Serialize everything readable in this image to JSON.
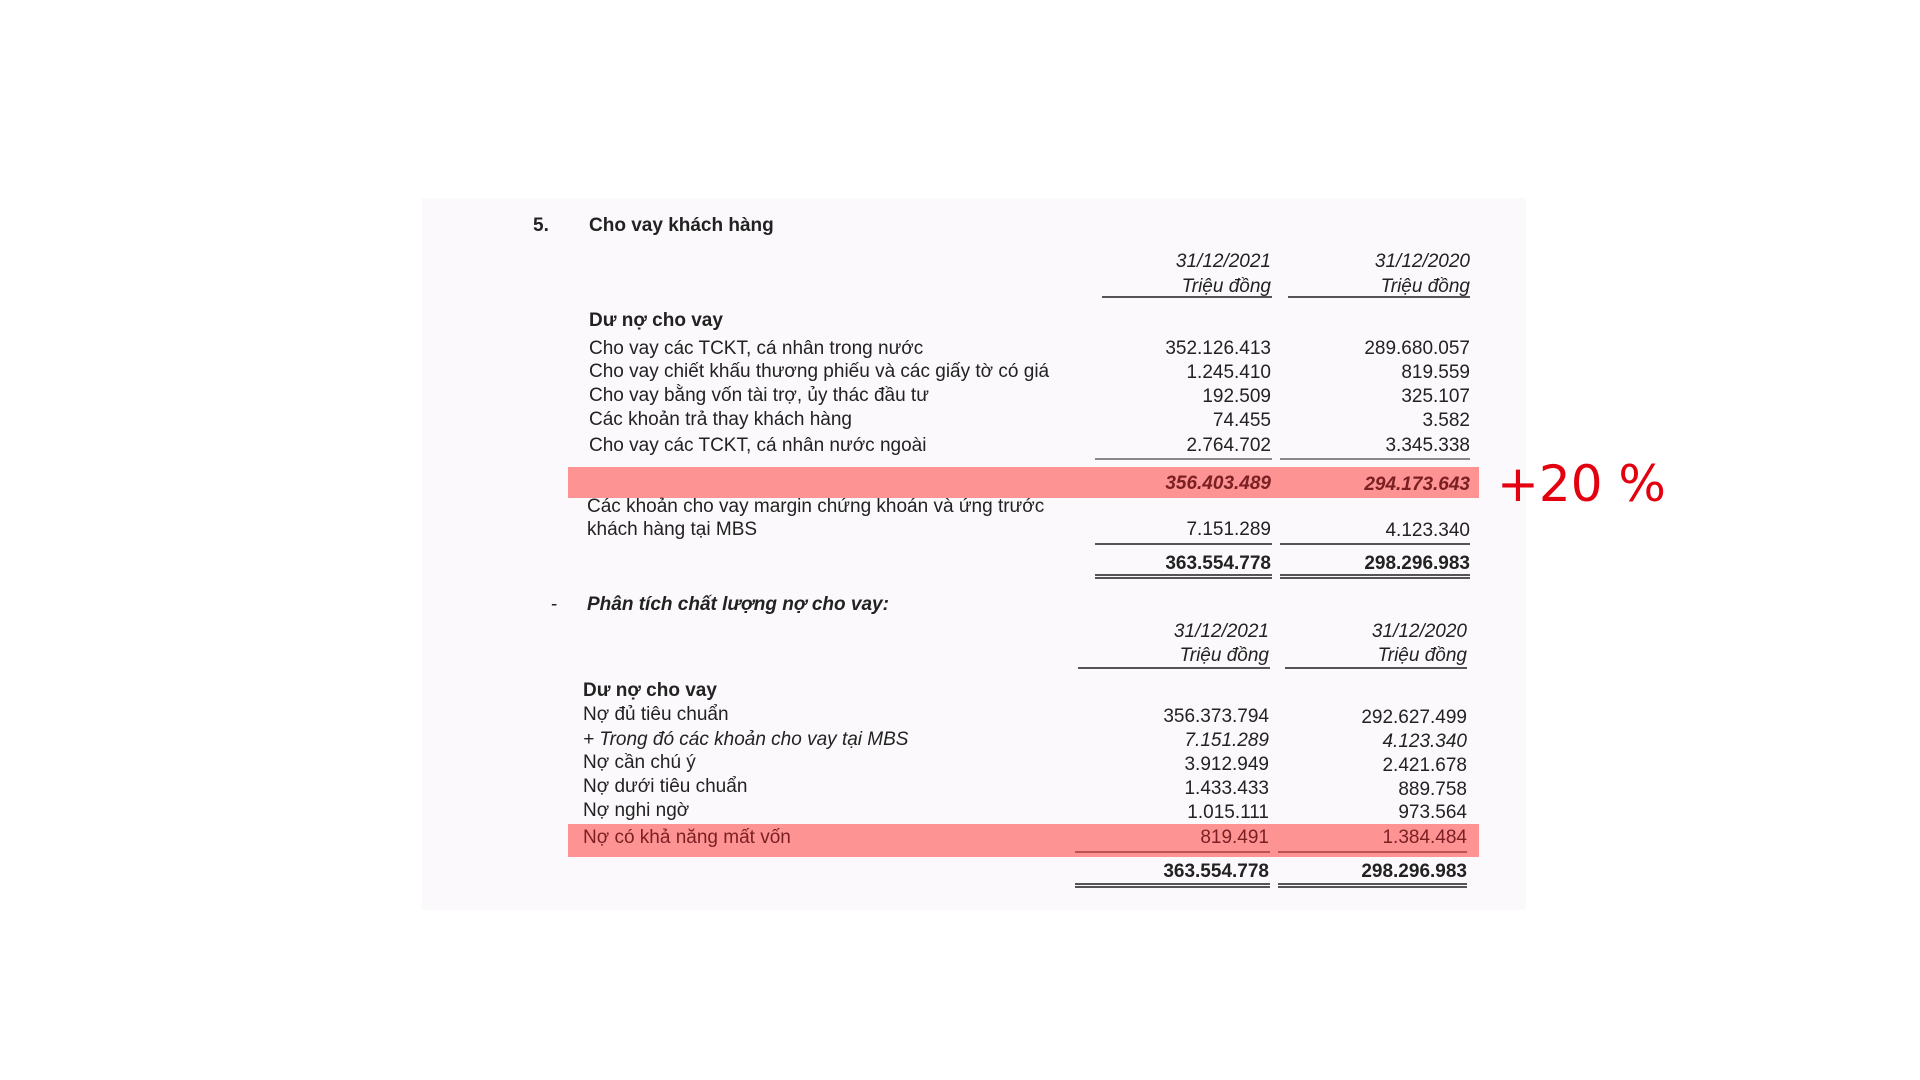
{
  "section_number": "5.",
  "title": "Cho vay khách hàng",
  "columns": [
    {
      "date": "31/12/2021",
      "unit": "Triệu đồng"
    },
    {
      "date": "31/12/2020",
      "unit": "Triệu đồng"
    }
  ],
  "table1": {
    "group_label": "Dư nợ cho vay",
    "rows": [
      {
        "label": "Cho vay các TCKT, cá nhân trong nước",
        "v2021": "352.126.413",
        "v2020": "289.680.057"
      },
      {
        "label": "Cho vay chiết khấu thương phiếu và các giấy tờ có giá",
        "v2021": "1.245.410",
        "v2020": "819.559"
      },
      {
        "label": "Cho vay bằng vốn tài trợ, ủy thác đầu tư",
        "v2021": "192.509",
        "v2020": "325.107"
      },
      {
        "label": "Các khoản trả thay khách hàng",
        "v2021": "74.455",
        "v2020": "3.582"
      },
      {
        "label": "Cho vay các TCKT, cá nhân nước ngoài",
        "v2021": "2.764.702",
        "v2020": "3.345.338"
      }
    ],
    "subtotal": {
      "v2021": "356.403.489",
      "v2020": "294.173.643"
    },
    "margin": {
      "label_line1": "Các khoản cho vay margin chứng khoán và ứng trước",
      "label_line2": "khách hàng tại MBS",
      "v2021": "7.151.289",
      "v2020": "4.123.340"
    },
    "total": {
      "v2021": "363.554.778",
      "v2020": "298.296.983"
    }
  },
  "annotation": {
    "text": "+20 %",
    "color": "#e3000f"
  },
  "highlight_color": "#fe9393",
  "section2": {
    "bullet": "-",
    "title": "Phân tích chất lượng nợ cho vay:",
    "group_label": "Dư nợ cho vay",
    "rows": [
      {
        "label": "Nợ đủ tiêu chuẩn",
        "v2021": "356.373.794",
        "v2020": "292.627.499",
        "italic": false
      },
      {
        "label": "+  Trong đó các khoản cho vay tại MBS",
        "v2021": "7.151.289",
        "v2020": "4.123.340",
        "italic": true
      },
      {
        "label": "Nợ cần chú ý",
        "v2021": "3.912.949",
        "v2020": "2.421.678",
        "italic": false
      },
      {
        "label": "Nợ dưới tiêu chuẩn",
        "v2021": "1.433.433",
        "v2020": "889.758",
        "italic": false
      },
      {
        "label": "Nợ nghi ngờ",
        "v2021": "1.015.111",
        "v2020": "973.564",
        "italic": false
      },
      {
        "label": "Nợ có khả năng mất vốn",
        "v2021": "819.491",
        "v2020": "1.384.484",
        "italic": false
      }
    ],
    "total": {
      "v2021": "363.554.778",
      "v2020": "298.296.983"
    }
  }
}
